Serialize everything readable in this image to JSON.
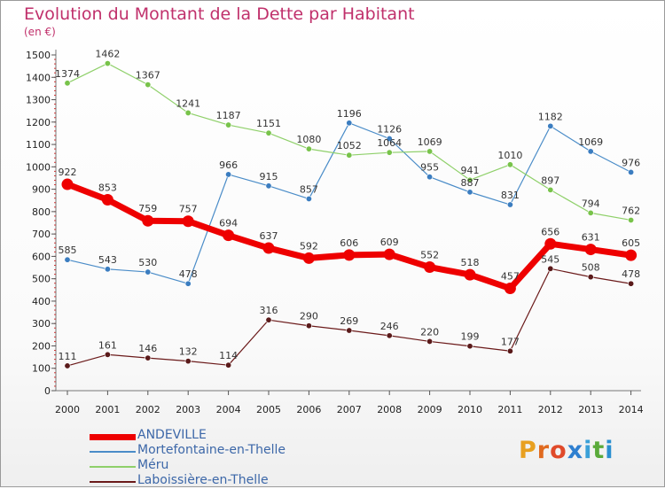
{
  "title": "Evolution du Montant de la Dette par Habitant",
  "unit_label": "(en €)",
  "logo": {
    "text": "Proxiti",
    "colors": [
      "#e8a020",
      "#e06a1f",
      "#e04a2a",
      "#2e7fd0",
      "#3aa0d8",
      "#5aaa3a",
      "#2a8fd0"
    ]
  },
  "chart_data": {
    "type": "line",
    "x": [
      "2000",
      "2001",
      "2002",
      "2003",
      "2004",
      "2005",
      "2006",
      "2007",
      "2008",
      "2009",
      "2010",
      "2011",
      "2012",
      "2013",
      "2014"
    ],
    "ylim": [
      0,
      1500
    ],
    "yticks": [
      0,
      100,
      200,
      300,
      400,
      500,
      600,
      700,
      800,
      900,
      1000,
      1100,
      1200,
      1300,
      1400,
      1500
    ],
    "grid": false,
    "legend_placement": "bottom",
    "series": [
      {
        "name": "Laboissière-en-Thelle",
        "color": "#6b1a1a",
        "marker_color": "#5a1a1a",
        "width": 1.2,
        "marker": 3.2,
        "values": [
          111,
          161,
          146,
          132,
          114,
          316,
          290,
          269,
          246,
          220,
          199,
          177,
          545,
          508,
          478
        ]
      },
      {
        "name": "Mortefontaine-en-Thelle",
        "color": "#4a8cc8",
        "marker_color": "#3b7dc0",
        "width": 1.2,
        "marker": 3.2,
        "values": [
          585,
          543,
          530,
          478,
          966,
          915,
          857,
          1196,
          1126,
          955,
          887,
          831,
          1182,
          1069,
          976
        ]
      },
      {
        "name": "Méru",
        "color": "#8fd06a",
        "marker_color": "#78c34a",
        "width": 1.2,
        "marker": 3.2,
        "values": [
          1374,
          1462,
          1367,
          1241,
          1187,
          1151,
          1080,
          1052,
          1064,
          1069,
          941,
          1010,
          897,
          794,
          762
        ]
      },
      {
        "name": "ANDEVILLE",
        "color": "#ee0000",
        "marker_color": "#ee0000",
        "width": 7,
        "marker": 6.5,
        "values": [
          922,
          853,
          759,
          757,
          694,
          637,
          592,
          606,
          609,
          552,
          518,
          457,
          656,
          631,
          605
        ]
      }
    ]
  },
  "legend": [
    {
      "label": "ANDEVILLE",
      "color": "#ee0000",
      "thickness": 7
    },
    {
      "label": "Mortefontaine-en-Thelle",
      "color": "#4a8cc8",
      "thickness": 1.5
    },
    {
      "label": "Méru",
      "color": "#8fd06a",
      "thickness": 1.5
    },
    {
      "label": "Laboissière-en-Thelle",
      "color": "#6b1a1a",
      "thickness": 1.5
    }
  ]
}
